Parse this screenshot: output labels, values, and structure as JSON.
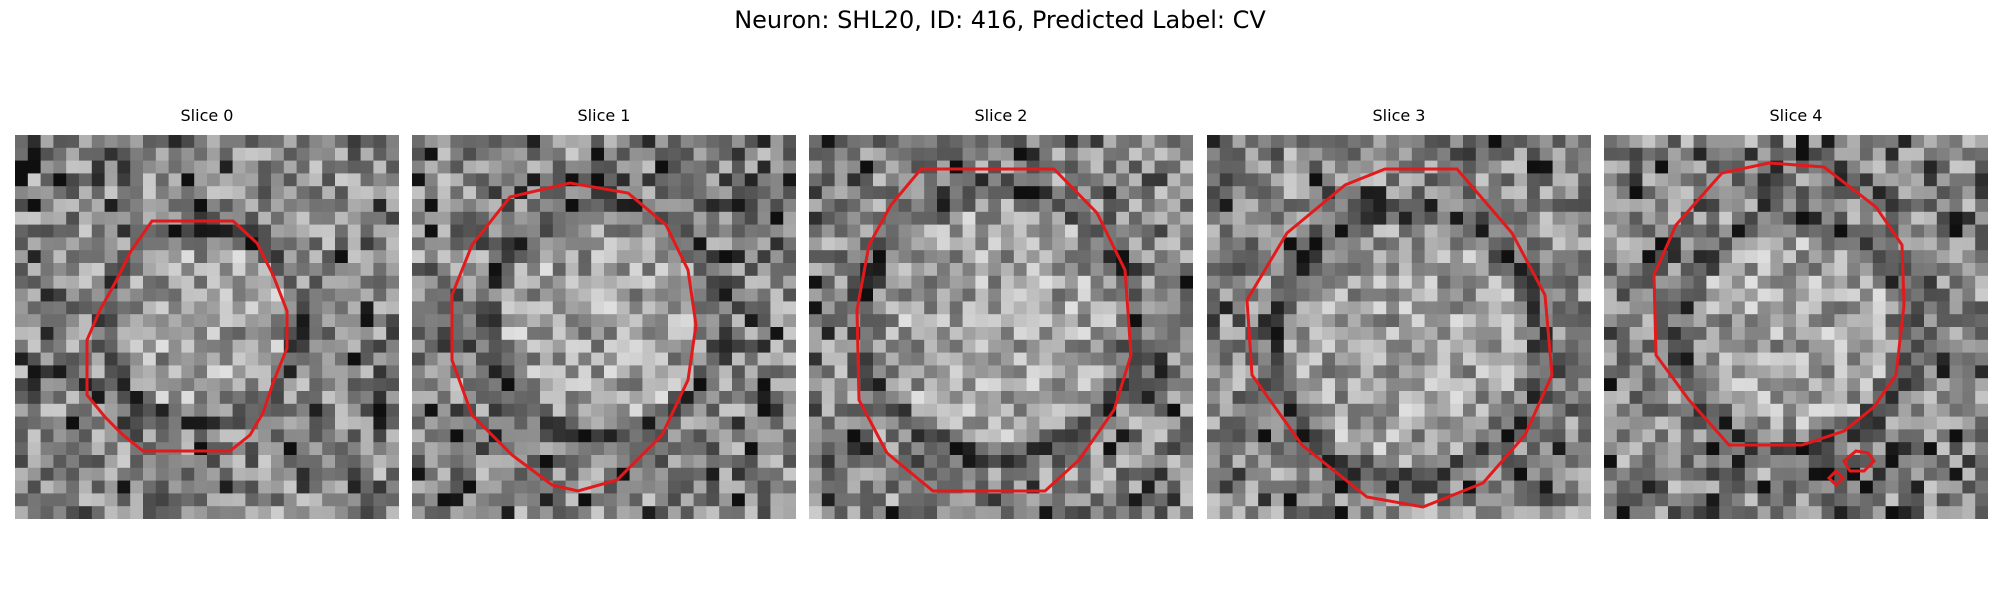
{
  "figure": {
    "title": "Neuron: SHL20, ID: 416, Predicted Label: CV"
  },
  "slices": [
    {
      "label": "Slice 0"
    },
    {
      "label": "Slice 1"
    },
    {
      "label": "Slice 2"
    },
    {
      "label": "Slice 3"
    },
    {
      "label": "Slice 4"
    }
  ],
  "style": {
    "contour_color": "#e31a1c",
    "colormap": "gray"
  }
}
